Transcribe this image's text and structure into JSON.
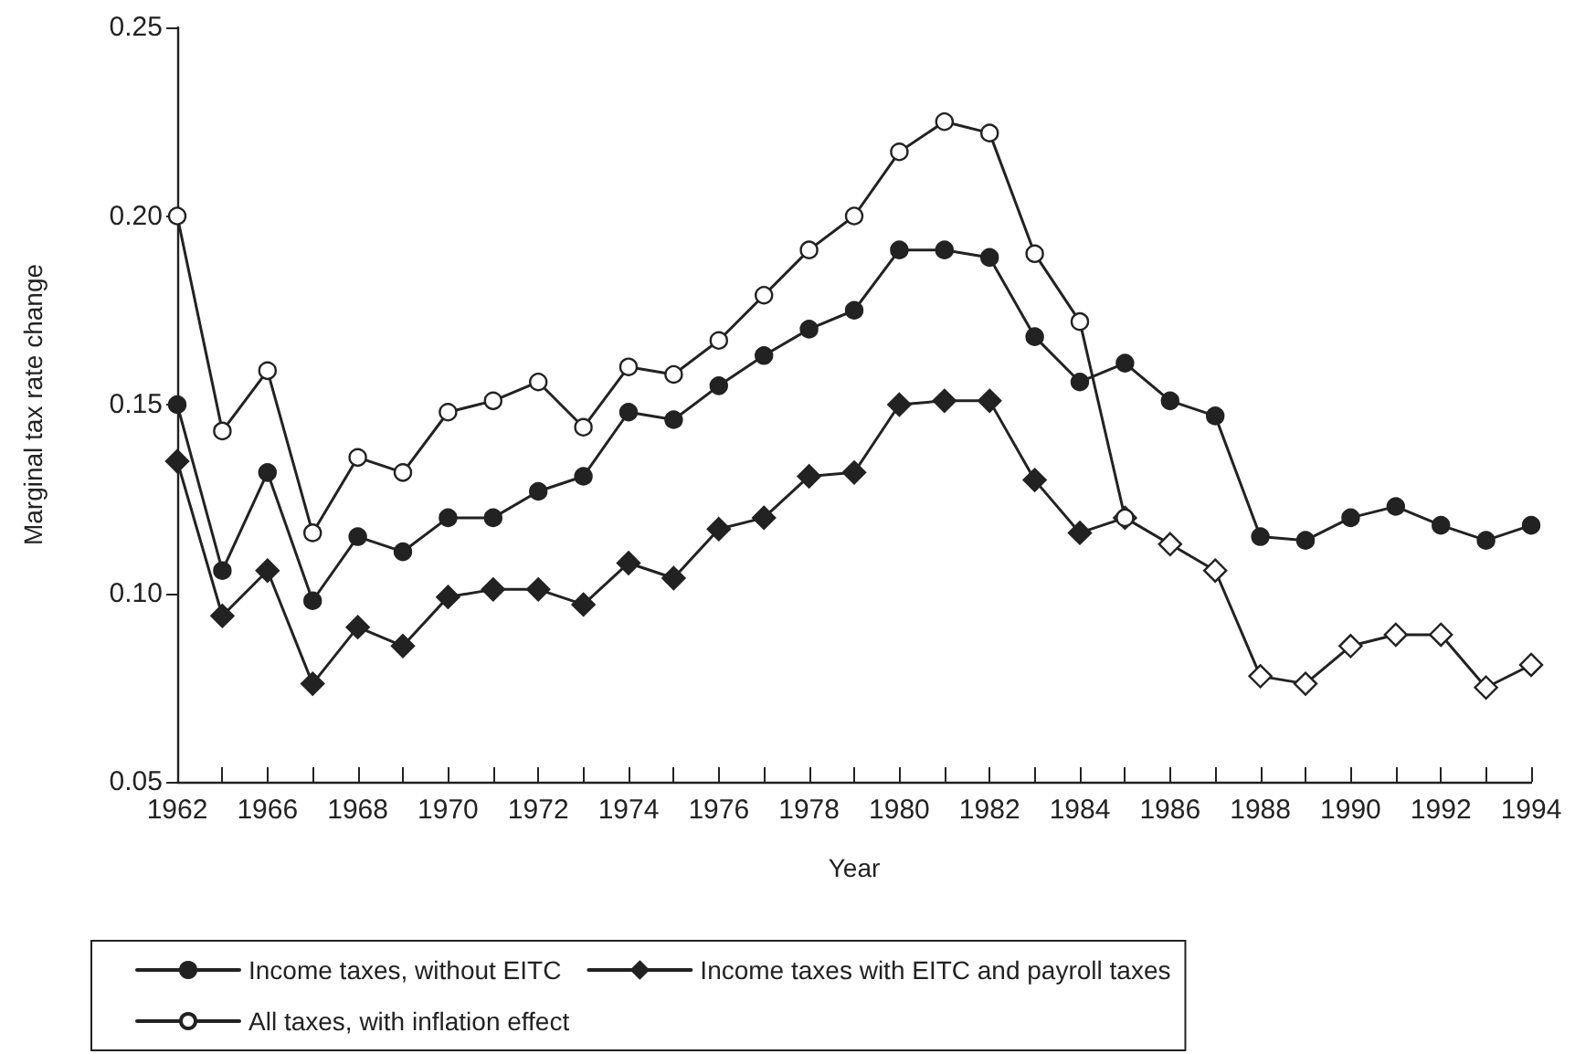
{
  "chart_data": {
    "type": "line",
    "xlabel": "Year",
    "ylabel": "Marginal tax rate change",
    "categories": [
      "1962",
      null,
      "1966",
      null,
      "1968",
      null,
      "1970",
      null,
      "1972",
      null,
      "1974",
      null,
      "1976",
      null,
      "1978",
      null,
      "1980",
      null,
      "1982",
      null,
      "1984",
      null,
      "1986",
      null,
      "1988",
      null,
      "1990",
      null,
      "1992",
      null,
      "1994"
    ],
    "ylim": [
      0.05,
      0.25
    ],
    "yticks": [
      {
        "value": 0.05,
        "label": "0.05"
      },
      {
        "value": 0.1,
        "label": "0.10"
      },
      {
        "value": 0.15,
        "label": "0.15"
      },
      {
        "value": 0.2,
        "label": "0.20"
      },
      {
        "value": 0.25,
        "label": "0.25"
      }
    ],
    "grid": false,
    "legend": "bottom",
    "line_style": "solid",
    "series": [
      {
        "name": "Income taxes, without EITC",
        "color": "#222222",
        "marker": "circle",
        "values": [
          0.15,
          0.106,
          0.132,
          0.098,
          0.115,
          0.111,
          0.12,
          0.12,
          0.127,
          0.131,
          0.148,
          0.146,
          0.155,
          0.163,
          0.17,
          0.175,
          0.191,
          0.191,
          0.189,
          0.168,
          0.156,
          0.161,
          0.151,
          0.147,
          0.115,
          0.114,
          0.12,
          0.123,
          0.118,
          0.114,
          0.118
        ]
      },
      {
        "name": "Income taxes with EITC and payroll taxes",
        "color": "#222222",
        "marker": "diamond",
        "colors": [
          "#222222",
          "#222222",
          "#222222",
          "#222222",
          "#222222",
          "#222222",
          "#222222",
          "#222222",
          "#222222",
          "#222222",
          "#222222",
          "#222222",
          "#222222",
          "#222222",
          "#222222",
          "#222222",
          "#222222",
          "#222222",
          "#222222",
          "#222222",
          "#222222",
          "#ffffff",
          "#ffffff",
          "#ffffff",
          "#ffffff",
          "#ffffff",
          "#ffffff",
          "#ffffff",
          "#ffffff",
          "#ffffff",
          "#ffffff"
        ],
        "values": [
          0.135,
          0.094,
          0.106,
          0.076,
          0.091,
          0.086,
          0.099,
          0.101,
          0.101,
          0.097,
          0.108,
          0.104,
          0.117,
          0.12,
          0.131,
          0.132,
          0.15,
          0.151,
          0.151,
          0.13,
          0.116,
          0.12,
          0.113,
          0.106,
          0.078,
          0.076,
          0.086,
          0.089,
          0.089,
          0.075,
          0.081
        ]
      },
      {
        "name": "All taxes, with inflation effect",
        "color": "#222222",
        "marker": "circle",
        "colors": [
          "#ffffff",
          "#ffffff",
          "#ffffff",
          "#ffffff",
          "#ffffff",
          "#ffffff",
          "#ffffff",
          "#ffffff",
          "#ffffff",
          "#ffffff",
          "#ffffff",
          "#ffffff",
          "#ffffff",
          "#ffffff",
          "#ffffff",
          "#ffffff",
          "#ffffff",
          "#ffffff",
          "#ffffff",
          "#ffffff",
          "#ffffff",
          "#ffffff",
          null,
          null,
          null,
          null,
          null,
          null,
          null,
          null,
          null
        ],
        "values": [
          0.2,
          0.143,
          0.159,
          0.116,
          0.136,
          0.132,
          0.148,
          0.151,
          0.156,
          0.144,
          0.16,
          0.158,
          0.167,
          0.179,
          0.191,
          0.2,
          0.217,
          0.225,
          0.222,
          0.19,
          0.172,
          0.12,
          null,
          null,
          null,
          null,
          null,
          null,
          null,
          null,
          null
        ]
      }
    ]
  }
}
